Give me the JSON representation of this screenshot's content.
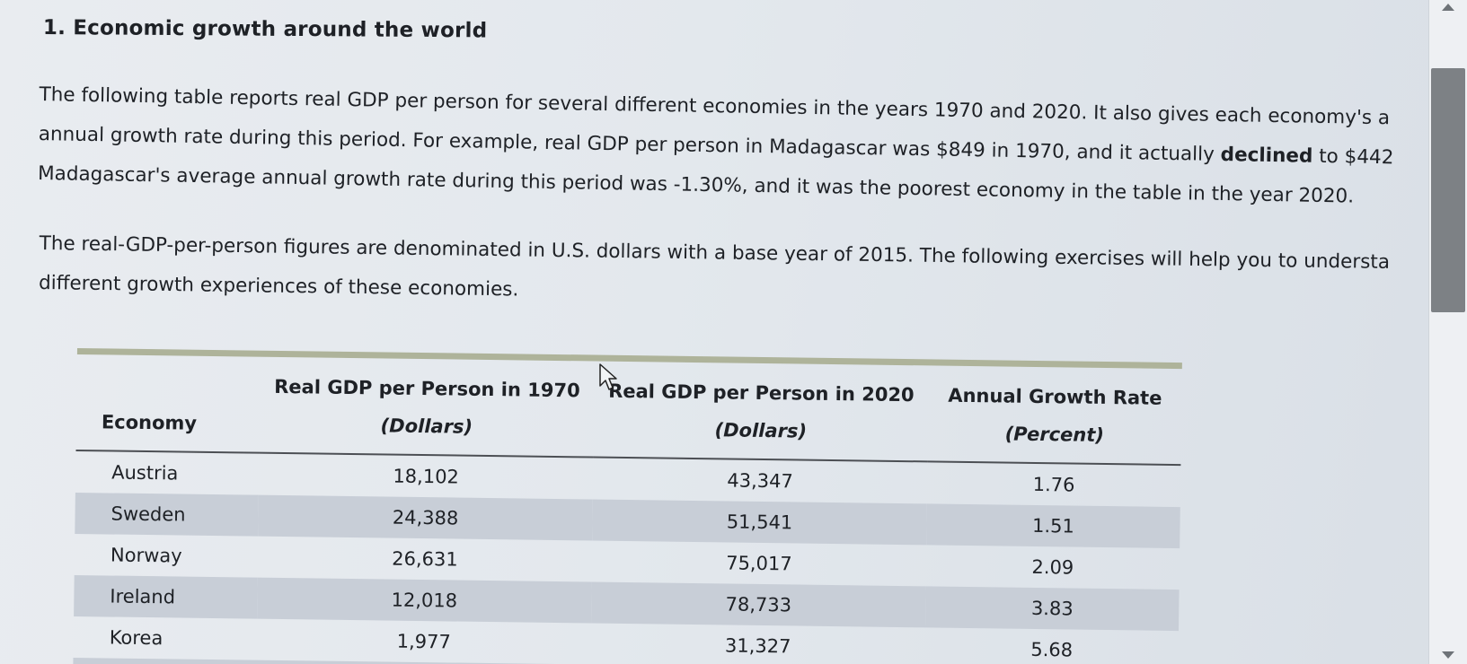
{
  "title": "1. Economic growth around the world",
  "paragraph1": {
    "line1": "The following table reports real GDP per person for several different economies in the years 1970 and 2020. It also gives each economy's a",
    "line2": "annual growth rate during this period. For example, real GDP per person in Madagascar was $849 in 1970, and it actually",
    "line2_bold": "declined",
    "line2_end": "to $442",
    "line3": "Madagascar's average annual growth rate during this period was -1.30%, and it was the poorest economy in the table in the year 2020."
  },
  "paragraph2": {
    "line1": "The real-GDP-per-person figures are denominated in U.S. dollars with a base year of 2015. The following exercises will help you to understa",
    "line2": "different growth experiences of these economies."
  },
  "table": {
    "headers": {
      "economy": "Economy",
      "gdp1970": "Real GDP per Person in 1970",
      "gdp1970_unit": "(Dollars)",
      "gdp2020": "Real GDP per Person in 2020",
      "gdp2020_unit": "(Dollars)",
      "growth": "Annual Growth Rate",
      "growth_unit": "(Percent)"
    },
    "rows": [
      {
        "economy": "Austria",
        "gdp1970": "18,102",
        "gdp2020": "43,347",
        "growth": "1.76"
      },
      {
        "economy": "Sweden",
        "gdp1970": "24,388",
        "gdp2020": "51,541",
        "growth": "1.51"
      },
      {
        "economy": "Norway",
        "gdp1970": "26,631",
        "gdp2020": "75,017",
        "growth": "2.09"
      },
      {
        "economy": "Ireland",
        "gdp1970": "12,018",
        "gdp2020": "78,733",
        "growth": "3.83"
      },
      {
        "economy": "Korea",
        "gdp1970": "1,977",
        "gdp2020": "31,327",
        "growth": "5.68"
      }
    ]
  },
  "colors": {
    "shaded_row": "#c8ced7",
    "top_rule": "#aeb39a",
    "scroll_thumb": "#7d8185"
  },
  "icons": {
    "cursor": "arrow-cursor-icon",
    "scroll_up": "chevron-up-icon",
    "scroll_down": "chevron-down-icon"
  }
}
